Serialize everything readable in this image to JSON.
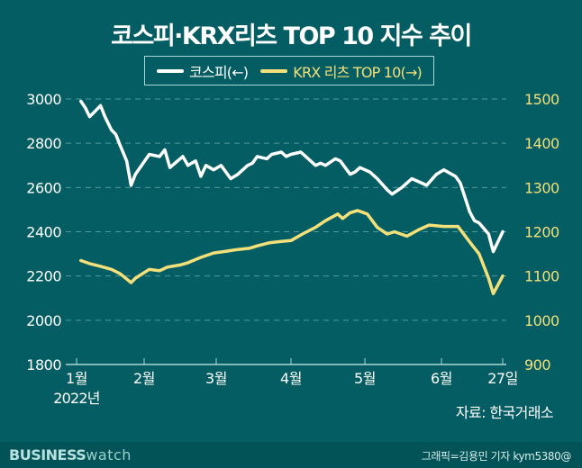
{
  "title": "코스피·KRX리츠 TOP 10 지수 추이",
  "legend": [
    {
      "label": "코스피(←)",
      "color": "#ffffff"
    },
    {
      "label": "KRX 리츠 TOP 10(→)",
      "color": "#f3e07a"
    }
  ],
  "axes": {
    "left_ticks": [
      "3000",
      "2800",
      "2600",
      "2400",
      "2200",
      "2000",
      "1800"
    ],
    "right_ticks": [
      "1500",
      "1400",
      "1300",
      "1200",
      "1100",
      "1000",
      "900"
    ],
    "x_ticks": [
      "1월",
      "2월",
      "3월",
      "4월",
      "5월",
      "6월",
      "27일"
    ],
    "x_sub": "2022년"
  },
  "source": "자료: 한국거래소",
  "footer": {
    "brand_bold": "BUSINESS",
    "brand_light": "watch",
    "credit": "그래픽=김용민 기자 kym5380@"
  },
  "colors": {
    "background": "#045d63",
    "kospi": "#ffffff",
    "reits": "#f3e07a",
    "grid": "#4f9a9c",
    "left_axis_text": "#ffffff",
    "right_axis_text": "#f3e07a"
  },
  "chart_data": {
    "type": "line",
    "title": "코스피·KRX리츠 TOP 10 지수 추이",
    "xlabel": "2022년",
    "x_ticks": [
      "1월",
      "2월",
      "3월",
      "4월",
      "5월",
      "6월",
      "27일"
    ],
    "y_left": {
      "label": "코스피(←)",
      "range": [
        1800,
        3000
      ]
    },
    "y_right": {
      "label": "KRX 리츠 TOP 10(→)",
      "range": [
        900,
        1500
      ]
    },
    "grid": true,
    "legend_position": "top",
    "series": [
      {
        "name": "코스피(←)",
        "axis": "left",
        "x": [
          "01-03",
          "01-05",
          "01-07",
          "01-10",
          "01-12",
          "01-14",
          "01-17",
          "01-19",
          "01-21",
          "01-24",
          "01-26",
          "01-28",
          "02-03",
          "02-07",
          "02-09",
          "02-11",
          "02-14",
          "02-16",
          "02-18",
          "02-21",
          "02-23",
          "02-25",
          "02-28",
          "03-03",
          "03-07",
          "03-10",
          "03-14",
          "03-16",
          "03-18",
          "03-22",
          "03-24",
          "03-28",
          "03-30",
          "04-01",
          "04-05",
          "04-07",
          "04-11",
          "04-13",
          "04-15",
          "04-19",
          "04-21",
          "04-25",
          "04-27",
          "04-29",
          "05-03",
          "05-06",
          "05-10",
          "05-12",
          "05-16",
          "05-18",
          "05-20",
          "05-24",
          "05-26",
          "05-30",
          "06-02",
          "06-07",
          "06-09",
          "06-13",
          "06-15",
          "06-17",
          "06-21",
          "06-23",
          "06-27"
        ],
        "values": [
          2990,
          2960,
          2920,
          2950,
          2970,
          2920,
          2860,
          2840,
          2790,
          2720,
          2610,
          2660,
          2750,
          2740,
          2770,
          2690,
          2720,
          2740,
          2700,
          2720,
          2650,
          2700,
          2680,
          2700,
          2640,
          2660,
          2700,
          2710,
          2740,
          2730,
          2750,
          2760,
          2740,
          2750,
          2760,
          2740,
          2700,
          2710,
          2700,
          2730,
          2720,
          2660,
          2670,
          2690,
          2670,
          2640,
          2590,
          2570,
          2600,
          2620,
          2640,
          2620,
          2610,
          2660,
          2680,
          2650,
          2620,
          2490,
          2450,
          2440,
          2390,
          2310,
          2400
        ]
      },
      {
        "name": "KRX 리츠 TOP 10(→)",
        "axis": "right",
        "x": [
          "01-03",
          "01-07",
          "01-12",
          "01-17",
          "01-21",
          "01-26",
          "01-28",
          "02-03",
          "02-07",
          "02-10",
          "02-15",
          "02-18",
          "02-23",
          "02-28",
          "03-04",
          "03-10",
          "03-15",
          "03-18",
          "03-23",
          "03-28",
          "04-01",
          "04-06",
          "04-11",
          "04-15",
          "04-20",
          "04-22",
          "04-25",
          "04-28",
          "05-02",
          "05-06",
          "05-10",
          "05-13",
          "05-18",
          "05-23",
          "05-27",
          "06-02",
          "06-08",
          "06-14",
          "06-17",
          "06-21",
          "06-23",
          "06-27"
        ],
        "values": [
          1135,
          1128,
          1122,
          1115,
          1105,
          1085,
          1095,
          1115,
          1112,
          1120,
          1125,
          1130,
          1142,
          1152,
          1155,
          1160,
          1163,
          1168,
          1175,
          1178,
          1180,
          1196,
          1210,
          1225,
          1240,
          1230,
          1243,
          1248,
          1240,
          1210,
          1195,
          1200,
          1190,
          1205,
          1215,
          1212,
          1212,
          1170,
          1150,
          1095,
          1060,
          1100
        ]
      }
    ]
  }
}
